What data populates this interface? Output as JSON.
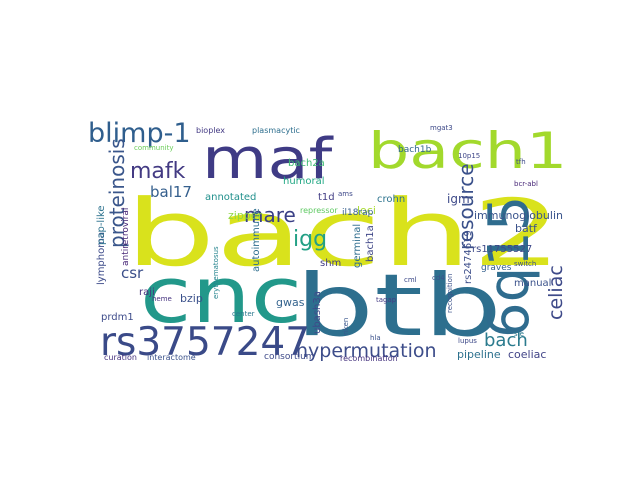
{
  "word_cloud": {
    "words": [
      {
        "text": "bach2",
        "color": "#d9e21c"
      },
      {
        "text": "cnc",
        "color": "#22988a"
      },
      {
        "text": "btb",
        "color": "#2d6f8e"
      },
      {
        "text": "6q15",
        "color": "#2f6c8e"
      },
      {
        "text": "maf",
        "color": "#3f3b85"
      },
      {
        "text": "bach1",
        "color": "#a2d92c"
      },
      {
        "text": "rs3757247",
        "color": "#3a4a88"
      },
      {
        "text": "blimp-1",
        "color": "#2f5e8d"
      },
      {
        "text": "hypermutation",
        "color": "#3d4d8a"
      },
      {
        "text": "proteinosis",
        "color": "#3a568b"
      },
      {
        "text": "mafk",
        "color": "#433a83"
      },
      {
        "text": "mare",
        "color": "#3a3f86"
      },
      {
        "text": "igg",
        "color": "#23a085"
      },
      {
        "text": "resource",
        "color": "#3b518b"
      },
      {
        "text": "celiac",
        "color": "#3e4a89"
      },
      {
        "text": "bach",
        "color": "#2b7b8e"
      },
      {
        "text": "bal17",
        "color": "#355f8d"
      },
      {
        "text": "csr",
        "color": "#3b4f8a"
      },
      {
        "text": "annotated",
        "color": "#21908c"
      },
      {
        "text": "humoral",
        "color": "#22a884"
      },
      {
        "text": "bach2a",
        "color": "#3ebc73"
      },
      {
        "text": "zipper",
        "color": "#90d743"
      },
      {
        "text": "lymphoma",
        "color": "#3e4c8a"
      },
      {
        "text": "pap-like",
        "color": "#2c728e"
      },
      {
        "text": "antiretroviral",
        "color": "#482777"
      },
      {
        "text": "autoimmune",
        "color": "#2e6e8e"
      },
      {
        "text": "loci",
        "color": "#a8db34"
      },
      {
        "text": "crohn",
        "color": "#2c738e"
      },
      {
        "text": "igm",
        "color": "#3e4a89"
      },
      {
        "text": "immunoglobulin",
        "color": "#3a548c"
      },
      {
        "text": "batf",
        "color": "#3b528b"
      },
      {
        "text": "bach1b",
        "color": "#31668e"
      },
      {
        "text": "t1d",
        "color": "#433e85"
      },
      {
        "text": "rs11755527",
        "color": "#3e4989"
      },
      {
        "text": "rs2474619",
        "color": "#3d4e8a"
      },
      {
        "text": "graves",
        "color": "#34608d"
      },
      {
        "text": "germinal",
        "color": "#2e6d8e"
      },
      {
        "text": "bach1a",
        "color": "#3f4788"
      },
      {
        "text": "pipeline",
        "color": "#2d718e"
      },
      {
        "text": "coeliac",
        "color": "#414487"
      },
      {
        "text": "bzip",
        "color": "#3b518b"
      },
      {
        "text": "raji",
        "color": "#46337f"
      },
      {
        "text": "prdm1",
        "color": "#3e4c8a"
      },
      {
        "text": "gwas",
        "color": "#33638d"
      },
      {
        "text": "ubash3a",
        "color": "#3f4889"
      },
      {
        "text": "shm",
        "color": "#433e85"
      },
      {
        "text": "manual",
        "color": "#3b528b"
      },
      {
        "text": "consortium",
        "color": "#3e4a89"
      },
      {
        "text": "curation",
        "color": "#46327e"
      },
      {
        "text": "interactome",
        "color": "#3b528b"
      },
      {
        "text": "recombination",
        "color": "#46337f"
      },
      {
        "text": "il18rap",
        "color": "#355e8d"
      },
      {
        "text": "repressor",
        "color": "#5ec962"
      },
      {
        "text": "bioplex",
        "color": "#443b84"
      },
      {
        "text": "plasmacytic",
        "color": "#2e6f8e"
      },
      {
        "text": "community",
        "color": "#6ccd5a"
      },
      {
        "text": "erythematosus",
        "color": "#25848e"
      },
      {
        "text": "center",
        "color": "#2a788e"
      },
      {
        "text": "heme",
        "color": "#46337f"
      },
      {
        "text": "riken",
        "color": "#39568c"
      },
      {
        "text": "mgat3",
        "color": "#3e4a89"
      },
      {
        "text": "10p15",
        "color": "#3f4788"
      },
      {
        "text": "cd4",
        "color": "#3b528b"
      },
      {
        "text": "lupus",
        "color": "#3e4a89"
      },
      {
        "text": "ams",
        "color": "#3e4989"
      },
      {
        "text": "hla",
        "color": "#3b528b"
      },
      {
        "text": "tagap",
        "color": "#443b84"
      },
      {
        "text": "cml",
        "color": "#3e4a89"
      },
      {
        "text": "switch",
        "color": "#3b528b"
      },
      {
        "text": "bcr-abl",
        "color": "#482878"
      },
      {
        "text": "tfh",
        "color": "#3e4a89"
      },
      {
        "text": "recognition",
        "color": "#3b528b"
      },
      {
        "text": "sle",
        "color": "#2a788e"
      }
    ]
  }
}
